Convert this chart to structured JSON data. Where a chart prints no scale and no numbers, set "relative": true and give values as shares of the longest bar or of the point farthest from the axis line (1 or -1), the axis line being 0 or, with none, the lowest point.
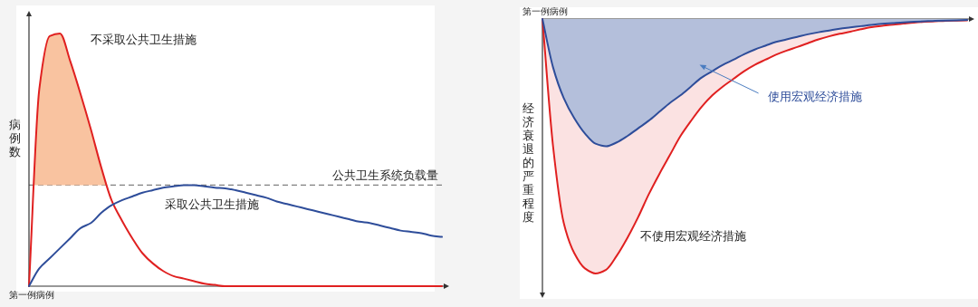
{
  "chart_data": [
    {
      "type": "line",
      "relative": true,
      "xlabel": "第一例病例",
      "ylabel": "病例数",
      "categories": [
        null,
        null,
        null,
        null,
        null,
        null,
        null,
        null,
        null,
        null,
        null,
        null,
        null,
        null,
        null,
        null,
        null,
        null,
        null,
        null,
        null,
        null,
        null,
        null,
        null,
        null,
        null,
        null,
        null,
        null,
        null,
        null,
        null,
        null,
        null,
        null,
        null,
        null,
        null,
        null,
        null
      ],
      "series": [
        {
          "name": "不采取公共卫生措施",
          "color": "#e02020",
          "values": [
            0,
            0.78,
            0.99,
            1,
            0.89,
            0.76,
            0.62,
            0.47,
            0.34,
            0.26,
            0.19,
            0.13,
            0.09,
            0.06,
            0.04,
            0.03,
            0.02,
            0.01,
            0.005,
            0,
            0,
            0,
            0,
            0,
            0,
            0,
            0,
            0,
            0,
            0,
            0,
            0,
            0,
            0,
            0,
            0,
            0,
            0,
            0,
            0,
            0
          ]
        },
        {
          "name": "采取公共卫生措施",
          "color": "#2e4d9a",
          "values": [
            0,
            0.07,
            0.11,
            0.15,
            0.19,
            0.23,
            0.25,
            0.29,
            0.32,
            0.34,
            0.355,
            0.37,
            0.38,
            0.39,
            0.395,
            0.4,
            0.4,
            0.395,
            0.39,
            0.387,
            0.38,
            0.37,
            0.36,
            0.35,
            0.335,
            0.325,
            0.315,
            0.305,
            0.295,
            0.285,
            0.275,
            0.265,
            0.255,
            0.25,
            0.24,
            0.23,
            0.22,
            0.215,
            0.21,
            0.2,
            0.195
          ]
        }
      ],
      "ref_lines": [
        {
          "axis": "y",
          "value": 0.4,
          "label": "公共卫生系统负载量",
          "line_style": "dashed",
          "color": "#808080"
        }
      ]
    },
    {
      "type": "area",
      "relative": true,
      "xlabel": "第一例病例",
      "ylabel": "经济衰退的严重程度",
      "categories": [
        null,
        null,
        null,
        null,
        null,
        null,
        null,
        null,
        null,
        null,
        null,
        null,
        null,
        null,
        null,
        null,
        null,
        null,
        null,
        null,
        null,
        null,
        null,
        null,
        null,
        null,
        null,
        null,
        null,
        null,
        null,
        null,
        null,
        null,
        null,
        null,
        null,
        null,
        null,
        null,
        null
      ],
      "series": [
        {
          "name": "不使用宏观经济措施",
          "color": "#e02020",
          "values": [
            0,
            -0.5,
            -0.8,
            -0.92,
            -0.98,
            -1,
            -0.985,
            -0.93,
            -0.86,
            -0.78,
            -0.69,
            -0.61,
            -0.535,
            -0.46,
            -0.4,
            -0.345,
            -0.3,
            -0.265,
            -0.235,
            -0.205,
            -0.18,
            -0.16,
            -0.14,
            -0.124,
            -0.11,
            -0.095,
            -0.08,
            -0.068,
            -0.058,
            -0.05,
            -0.04,
            -0.032,
            -0.027,
            -0.022,
            -0.018,
            -0.014,
            -0.011,
            -0.009,
            -0.007,
            -0.006,
            -0.005
          ]
        },
        {
          "name": "使用宏观经济措施",
          "color": "#2e4d9a",
          "values": [
            0,
            -0.19,
            -0.31,
            -0.39,
            -0.45,
            -0.49,
            -0.5,
            -0.485,
            -0.46,
            -0.43,
            -0.4,
            -0.365,
            -0.33,
            -0.3,
            -0.265,
            -0.23,
            -0.205,
            -0.18,
            -0.16,
            -0.138,
            -0.12,
            -0.105,
            -0.09,
            -0.08,
            -0.07,
            -0.06,
            -0.052,
            -0.045,
            -0.038,
            -0.033,
            -0.028,
            -0.023,
            -0.019,
            -0.016,
            -0.013,
            -0.011,
            -0.009,
            -0.007,
            -0.006,
            -0.005,
            -0.004
          ]
        }
      ]
    }
  ]
}
